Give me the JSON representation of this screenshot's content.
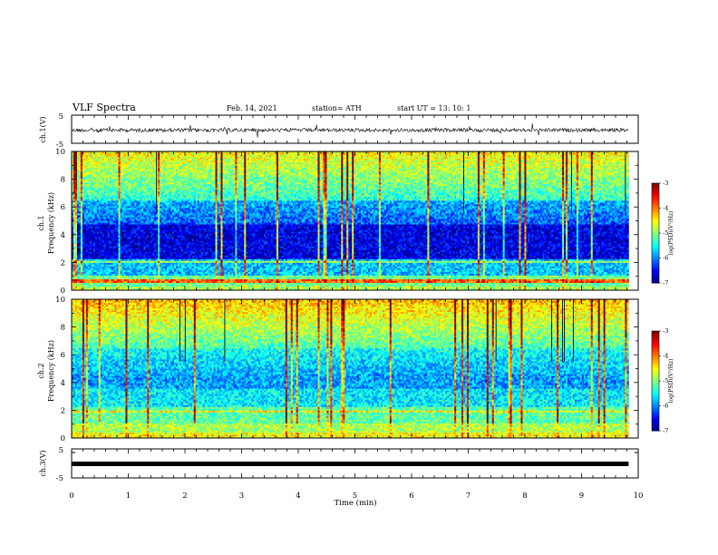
{
  "header": {
    "title": "VLF Spectra",
    "date": "Feb. 14, 2021",
    "station": "station= ATH",
    "start": "start  UT  =   13: 10: 1"
  },
  "chart_data": [
    {
      "type": "line",
      "id": "ch1-waveform",
      "ylabel": "ch.1(V)",
      "ylim": [
        -5,
        5
      ],
      "yticks": [
        "5",
        "-5"
      ],
      "xlim": [
        0,
        10
      ],
      "line_color": "#000000",
      "x_extent": [
        0,
        9.83
      ]
    },
    {
      "type": "heatmap",
      "id": "ch1-spectrogram",
      "ylabel": "ch.1",
      "ylabel2": "Frequency  (kHz)",
      "ylim": [
        0,
        10
      ],
      "yticks": [
        "0",
        "2",
        "4",
        "6",
        "8",
        "10"
      ],
      "xlim": [
        0,
        10
      ],
      "x_extent": [
        0,
        9.83
      ],
      "colorbar": {
        "label": "log(PSD)(V²/Hz)",
        "range": [
          -7,
          -3
        ],
        "ticks": [
          "-3",
          "-4",
          "-5",
          "-6",
          "-7"
        ]
      }
    },
    {
      "type": "heatmap",
      "id": "ch2-spectrogram",
      "ylabel": "ch.2",
      "ylabel2": "Frequency  (kHz)",
      "ylim": [
        0,
        10
      ],
      "yticks": [
        "0",
        "2",
        "4",
        "6",
        "8",
        "10"
      ],
      "xlim": [
        0,
        10
      ],
      "x_extent": [
        0,
        9.83
      ],
      "colorbar": {
        "label": "log(PSD)(V²/Hz)",
        "range": [
          -7,
          -3
        ],
        "ticks": [
          "-3",
          "-4",
          "-5",
          "-6",
          "-7"
        ]
      }
    },
    {
      "type": "line",
      "id": "ch3-waveform",
      "ylabel": "ch.3(V)",
      "ylim": [
        -5,
        5
      ],
      "yticks": [
        "5",
        "-5"
      ],
      "xlim": [
        0,
        10
      ],
      "line_color": "#000000",
      "x_extent": [
        0,
        9.83
      ],
      "xlabel": "Time  (min)",
      "xticks": [
        "0",
        "1",
        "2",
        "3",
        "4",
        "5",
        "6",
        "7",
        "8",
        "9",
        "10"
      ]
    }
  ]
}
